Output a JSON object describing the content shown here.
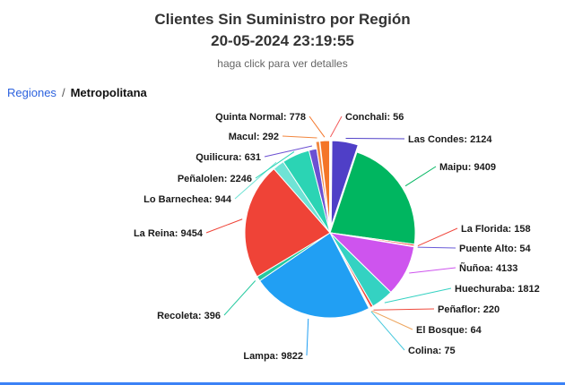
{
  "header": {
    "title": "Clientes Sin Suministro por Región",
    "datetime": "20-05-2024 23:19:55",
    "subtitle": "haga click para ver detalles"
  },
  "breadcrumb": {
    "root": "Regiones",
    "separator": "/",
    "current": "Metropolitana"
  },
  "chart_data": {
    "type": "pie",
    "title": "Clientes Sin Suministro por Región",
    "subtitle_datetime": "20-05-2024 23:19:55",
    "hint": "haga click para ver detalles",
    "label_format": "{name}: {value}",
    "slices": [
      {
        "name": "Conchali",
        "value": 56,
        "color": "#f45b5b",
        "sliced": true
      },
      {
        "name": "Las Condes",
        "value": 2124,
        "color": "#4f3fc7",
        "sliced": true
      },
      {
        "name": "Maipu",
        "value": 9409,
        "color": "#00b660",
        "sliced": false
      },
      {
        "name": "La Florida",
        "value": 158,
        "color": "#f0443a",
        "sliced": false
      },
      {
        "name": "Puente Alto",
        "value": 54,
        "color": "#6a5bd8",
        "sliced": false
      },
      {
        "name": "Ñuñoa",
        "value": 4133,
        "color": "#ce54ee",
        "sliced": false
      },
      {
        "name": "Huechuraba",
        "value": 1812,
        "color": "#34d2c2",
        "sliced": false
      },
      {
        "name": "Peñaflor",
        "value": 220,
        "color": "#ef4a3c",
        "sliced": false
      },
      {
        "name": "El Bosque",
        "value": 64,
        "color": "#eda45c",
        "sliced": false
      },
      {
        "name": "Colina",
        "value": 75,
        "color": "#45c8dd",
        "sliced": false
      },
      {
        "name": "Lampa",
        "value": 9822,
        "color": "#219ff3",
        "sliced": false
      },
      {
        "name": "Recoleta",
        "value": 396,
        "color": "#25c99f",
        "sliced": false
      },
      {
        "name": "La Reina",
        "value": 9454,
        "color": "#ef4337",
        "sliced": false
      },
      {
        "name": "Lo Barnechea",
        "value": 944,
        "color": "#6fe3d5",
        "sliced": false
      },
      {
        "name": "Peñalolen",
        "value": 2246,
        "color": "#2bd4b4",
        "sliced": false
      },
      {
        "name": "Quilicura",
        "value": 631,
        "color": "#6c50d2",
        "sliced": false
      },
      {
        "name": "Macul",
        "value": 292,
        "color": "#f2873f",
        "sliced": true
      },
      {
        "name": "Quinta Normal",
        "value": 778,
        "color": "#f47528",
        "sliced": true
      }
    ]
  }
}
